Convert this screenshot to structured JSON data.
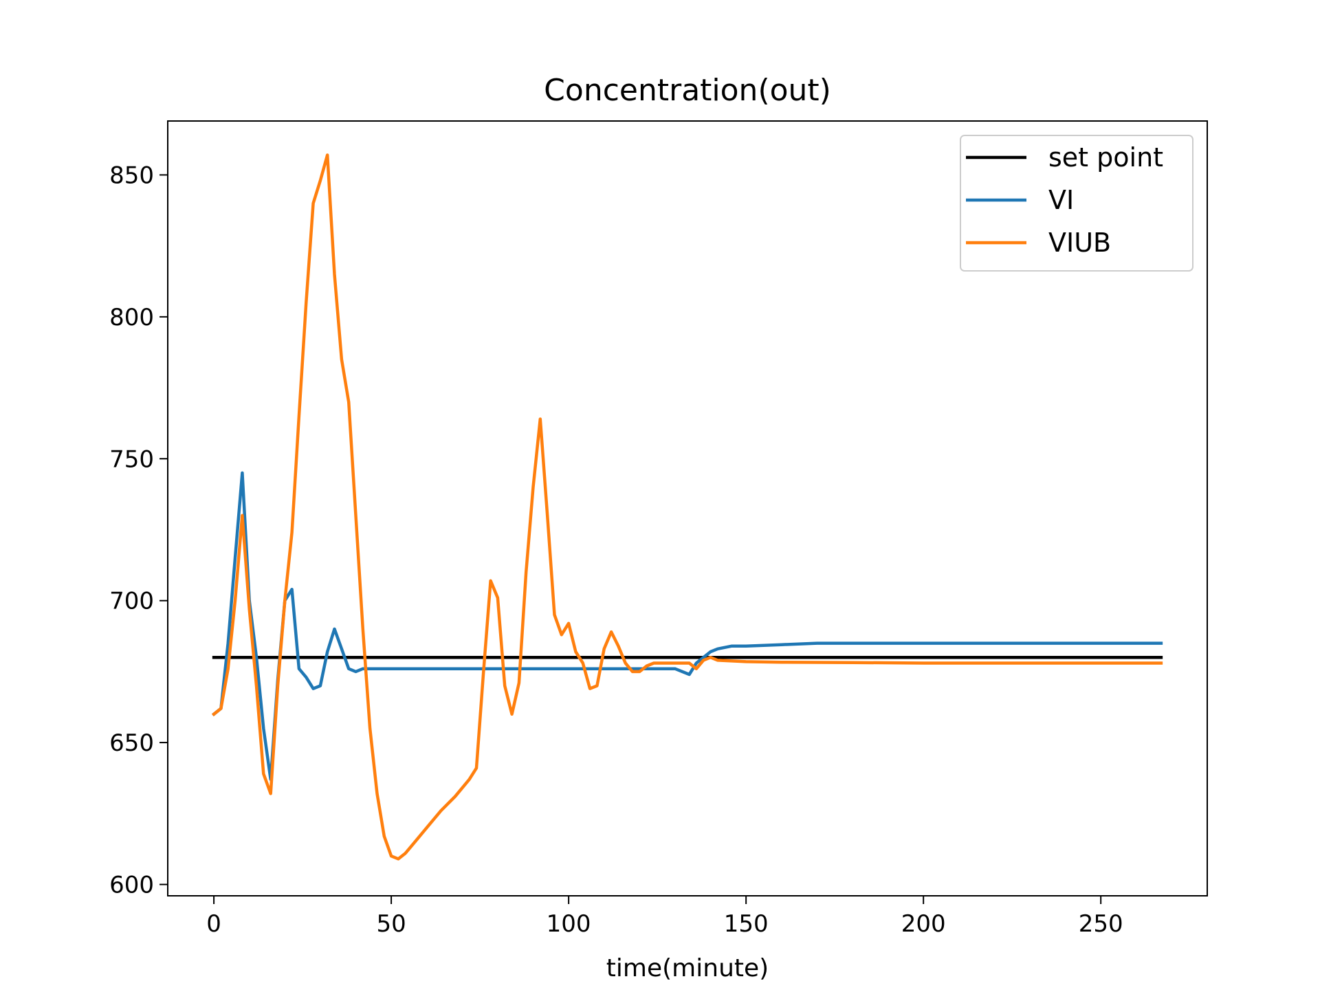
{
  "chart_data": {
    "type": "line",
    "title": "Concentration(out)",
    "xlabel": "time(minute)",
    "ylabel": "",
    "xlim": [
      -13,
      280
    ],
    "ylim": [
      596,
      869
    ],
    "xticks": [
      0,
      50,
      100,
      150,
      200,
      250
    ],
    "yticks": [
      600,
      650,
      700,
      750,
      800,
      850
    ],
    "grid": false,
    "legend_position": "top-right",
    "series": [
      {
        "name": "set point",
        "color": "#000000",
        "x": [
          0,
          267
        ],
        "y": [
          680,
          680
        ]
      },
      {
        "name": "VI",
        "color": "#1f77b4",
        "x": [
          0,
          2,
          4,
          6,
          8,
          10,
          12,
          14,
          16,
          18,
          20,
          22,
          24,
          26,
          28,
          30,
          32,
          34,
          36,
          38,
          40,
          42,
          44,
          50,
          60,
          80,
          100,
          120,
          130,
          134,
          136,
          138,
          140,
          142,
          146,
          150,
          160,
          170,
          180,
          190,
          200,
          210,
          220,
          230,
          240,
          250,
          267
        ],
        "y": [
          660,
          662,
          685,
          715,
          745,
          700,
          680,
          655,
          637,
          672,
          700,
          704,
          676,
          673,
          669,
          670,
          682,
          690,
          683,
          676,
          675,
          676,
          676,
          676,
          676,
          676,
          676,
          676,
          676,
          674,
          678,
          680,
          682,
          683,
          684,
          684,
          684.5,
          685,
          685,
          685,
          685,
          685,
          685,
          685,
          685,
          685,
          685
        ]
      },
      {
        "name": "VIUB",
        "color": "#ff7f0e",
        "x": [
          0,
          2,
          4,
          6,
          8,
          10,
          12,
          14,
          16,
          18,
          20,
          22,
          24,
          26,
          28,
          30,
          32,
          34,
          36,
          38,
          40,
          42,
          44,
          46,
          48,
          50,
          52,
          54,
          56,
          60,
          64,
          68,
          72,
          74,
          76,
          78,
          80,
          82,
          84,
          86,
          88,
          90,
          92,
          94,
          96,
          98,
          100,
          102,
          104,
          106,
          108,
          110,
          112,
          114,
          116,
          118,
          120,
          122,
          124,
          130,
          134,
          136,
          138,
          140,
          142,
          150,
          160,
          180,
          200,
          230,
          267
        ],
        "y": [
          660,
          662,
          676,
          700,
          730,
          697,
          670,
          639,
          632,
          670,
          700,
          724,
          765,
          805,
          840,
          848,
          857,
          815,
          785,
          770,
          730,
          690,
          655,
          632,
          617,
          610,
          609,
          611,
          614,
          620,
          626,
          631,
          637,
          641,
          675,
          707,
          701,
          670,
          660,
          671,
          710,
          740,
          764,
          730,
          695,
          688,
          692,
          682,
          678,
          669,
          670,
          683,
          689,
          684,
          678,
          675,
          675,
          677,
          678,
          678,
          678,
          676,
          679,
          680,
          679,
          678.5,
          678.3,
          678.2,
          678,
          678,
          678
        ]
      }
    ]
  }
}
